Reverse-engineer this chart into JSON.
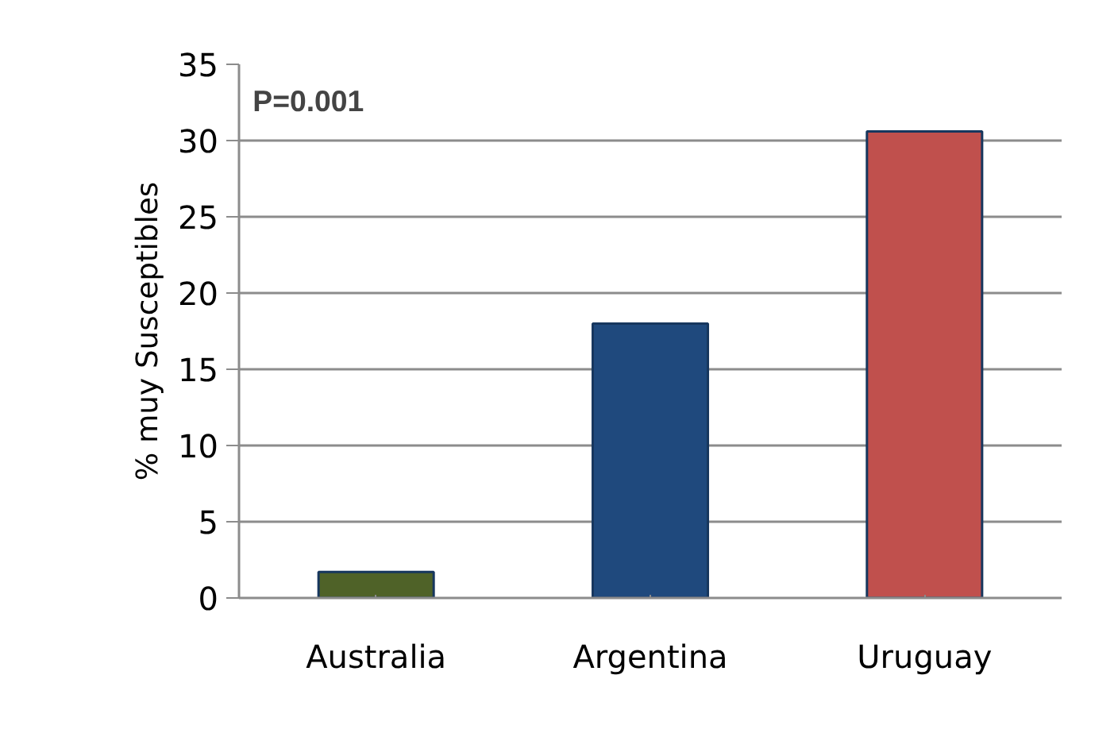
{
  "chart_data": {
    "type": "bar",
    "ylabel": "% muy Susceptibles",
    "categories": [
      "Australia",
      "Argentina",
      "Uruguay"
    ],
    "values": [
      1.7,
      18.0,
      30.6
    ],
    "colors": [
      "#4f6228",
      "#1f497d",
      "#c0504d"
    ],
    "ylim": [
      0,
      35
    ],
    "yticks": [
      0,
      5,
      10,
      15,
      20,
      25,
      30,
      35
    ],
    "grid": "y",
    "annotations": [
      {
        "text": "P=0.001"
      }
    ]
  }
}
